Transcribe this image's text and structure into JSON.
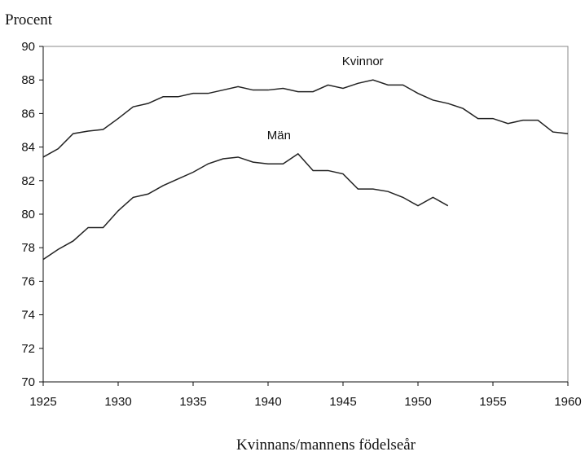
{
  "chart_data": {
    "type": "line",
    "y_axis_label": "Procent",
    "x_axis_label": "Kvinnans/mannens födelseår",
    "x": [
      1925,
      1926,
      1927,
      1928,
      1929,
      1930,
      1931,
      1932,
      1933,
      1934,
      1935,
      1936,
      1937,
      1938,
      1939,
      1940,
      1941,
      1942,
      1943,
      1944,
      1945,
      1946,
      1947,
      1948,
      1949,
      1950,
      1951,
      1952,
      1953,
      1954,
      1955,
      1956,
      1957,
      1958,
      1959,
      1960
    ],
    "series": [
      {
        "name": "Kvinnor",
        "color": "#222222",
        "values": [
          83.4,
          83.9,
          84.8,
          84.95,
          85.05,
          85.7,
          86.4,
          86.6,
          87.0,
          87.0,
          87.2,
          87.2,
          87.4,
          87.6,
          87.4,
          87.4,
          87.5,
          87.3,
          87.3,
          87.7,
          87.5,
          87.8,
          88.0,
          87.7,
          87.7,
          87.2,
          86.8,
          86.6,
          86.3,
          85.7,
          85.7,
          85.4,
          85.6,
          85.6,
          84.9,
          84.8
        ]
      },
      {
        "name": "Män",
        "color": "#222222",
        "values": [
          77.3,
          77.9,
          78.4,
          79.2,
          79.2,
          80.2,
          81.0,
          81.2,
          81.7,
          82.1,
          82.5,
          83.0,
          83.3,
          83.4,
          83.1,
          83.0,
          83.0,
          83.6,
          82.6,
          82.6,
          82.4,
          81.5,
          81.5,
          81.35,
          81.0,
          80.5,
          81.0,
          80.5,
          null,
          null,
          null,
          null,
          null,
          null,
          null,
          null
        ]
      }
    ],
    "xlim": [
      1925,
      1960
    ],
    "xticks": [
      1925,
      1930,
      1935,
      1940,
      1945,
      1950,
      1955,
      1960
    ],
    "ylim": [
      70,
      90
    ],
    "yticks": [
      70,
      72,
      74,
      76,
      78,
      80,
      82,
      84,
      86,
      88,
      90
    ],
    "grid": false
  }
}
